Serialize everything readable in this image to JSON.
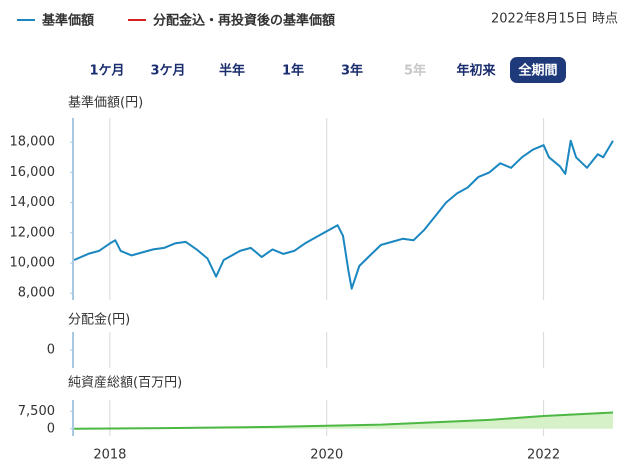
{
  "header": {
    "legend": [
      {
        "name": "基準価額",
        "color": "#1a87c0"
      },
      {
        "name": "分配金込・再投資後の基準価額",
        "color": "#d42020"
      }
    ],
    "as_of": "2022年8月15日 時点",
    "periods": [
      {
        "label": "1ケ月",
        "state": "normal"
      },
      {
        "label": "3ケ月",
        "state": "normal"
      },
      {
        "label": "半年",
        "state": "normal"
      },
      {
        "label": "1年",
        "state": "normal"
      },
      {
        "label": "3年",
        "state": "normal"
      },
      {
        "label": "5年",
        "state": "disabled"
      },
      {
        "label": "年初来",
        "state": "normal"
      },
      {
        "label": "全期間",
        "state": "selected"
      }
    ]
  },
  "chart_data": [
    {
      "type": "line",
      "title": "基準価額(円)",
      "xlim": [
        2017.66,
        2022.64
      ],
      "xticks": [
        2018,
        2020,
        2022
      ],
      "ylim": [
        7550,
        19600
      ],
      "yticks": [
        {
          "value": 8000,
          "label": "8,000"
        },
        {
          "value": 10000,
          "label": "10,000"
        },
        {
          "value": 12000,
          "label": "12,000"
        },
        {
          "value": 14000,
          "label": "14,000"
        },
        {
          "value": 16000,
          "label": "16,000"
        },
        {
          "value": 18000,
          "label": "18,000"
        }
      ],
      "x": [
        2017.67,
        2017.8,
        2017.9,
        2018.0,
        2018.05,
        2018.1,
        2018.2,
        2018.3,
        2018.4,
        2018.5,
        2018.6,
        2018.7,
        2018.8,
        2018.9,
        2018.98,
        2019.05,
        2019.2,
        2019.3,
        2019.4,
        2019.5,
        2019.6,
        2019.7,
        2019.8,
        2019.9,
        2020.0,
        2020.1,
        2020.15,
        2020.2,
        2020.23,
        2020.3,
        2020.4,
        2020.5,
        2020.6,
        2020.7,
        2020.8,
        2020.9,
        2021.0,
        2021.1,
        2021.2,
        2021.3,
        2021.4,
        2021.5,
        2021.6,
        2021.7,
        2021.8,
        2021.9,
        2022.0,
        2022.05,
        2022.15,
        2022.2,
        2022.25,
        2022.3,
        2022.4,
        2022.5,
        2022.55,
        2022.64
      ],
      "series": [
        {
          "name": "基準価額",
          "color": "#1a87c0",
          "values": [
            10200,
            10600,
            10800,
            11300,
            11500,
            10800,
            10500,
            10700,
            10900,
            11000,
            11300,
            11400,
            10900,
            10300,
            9100,
            10200,
            10800,
            11000,
            10400,
            10900,
            10600,
            10800,
            11300,
            11700,
            12100,
            12500,
            11800,
            9500,
            8300,
            9800,
            10500,
            11200,
            11400,
            11600,
            11500,
            12200,
            13100,
            14000,
            14600,
            15000,
            15700,
            16000,
            16600,
            16300,
            17000,
            17500,
            17800,
            17000,
            16400,
            15900,
            18100,
            17000,
            16300,
            17200,
            17000,
            18100
          ]
        }
      ]
    },
    {
      "type": "line",
      "title": "分配金(円)",
      "xlim": [
        2017.66,
        2022.64
      ],
      "xticks": [
        2018,
        2020,
        2022
      ],
      "ylim": [
        -1,
        1
      ],
      "yticks": [
        0
      ]
    },
    {
      "type": "area",
      "title": "純資産総額(百万円)",
      "xlim": [
        2017.66,
        2022.64
      ],
      "xticks": [
        2018,
        2020,
        2022
      ],
      "ylim": [
        -3100,
        12350
      ],
      "yticks": [
        0,
        {
          "value": 7500,
          "label": "7,500"
        }
      ],
      "x": [
        2017.67,
        2018.5,
        2019.5,
        2020.5,
        2021.5,
        2022.0,
        2022.64
      ],
      "series": [
        {
          "name": "純資産総額",
          "color": "#4cb843",
          "values": [
            50,
            300,
            800,
            1800,
            3800,
            5500,
            7000
          ]
        }
      ]
    }
  ]
}
